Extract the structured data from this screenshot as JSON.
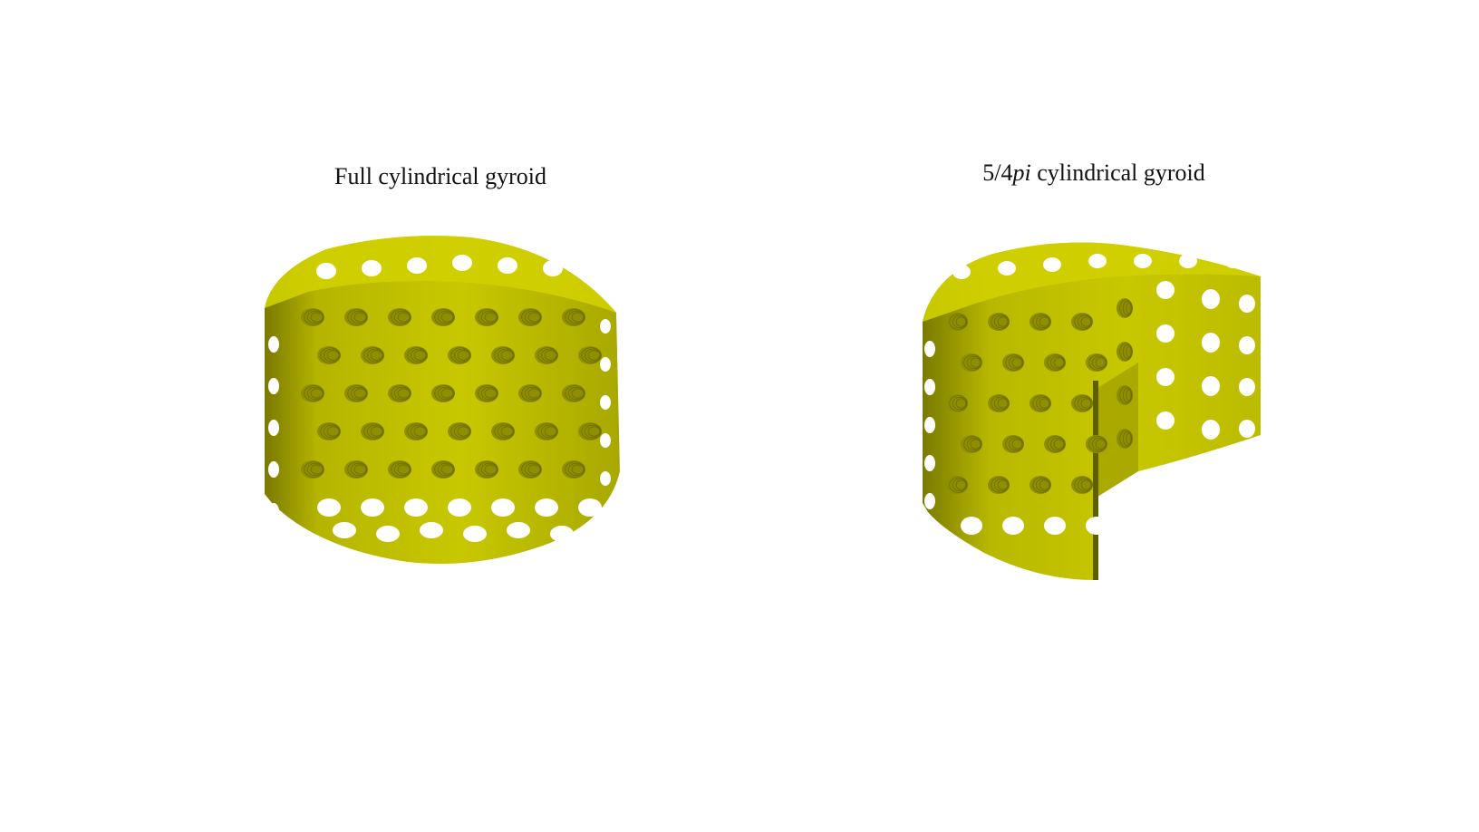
{
  "figures": [
    {
      "title": "Full cylindrical gyroid"
    },
    {
      "title_prefix": "5/4",
      "title_italic": "pi",
      "title_suffix": " cylindrical gyroid"
    }
  ],
  "colors": {
    "surface": "#c2c200",
    "surface_light": "#d4d400",
    "surface_dark": "#8e8e00",
    "shadow": "#5f5f00",
    "background": "#ffffff"
  }
}
